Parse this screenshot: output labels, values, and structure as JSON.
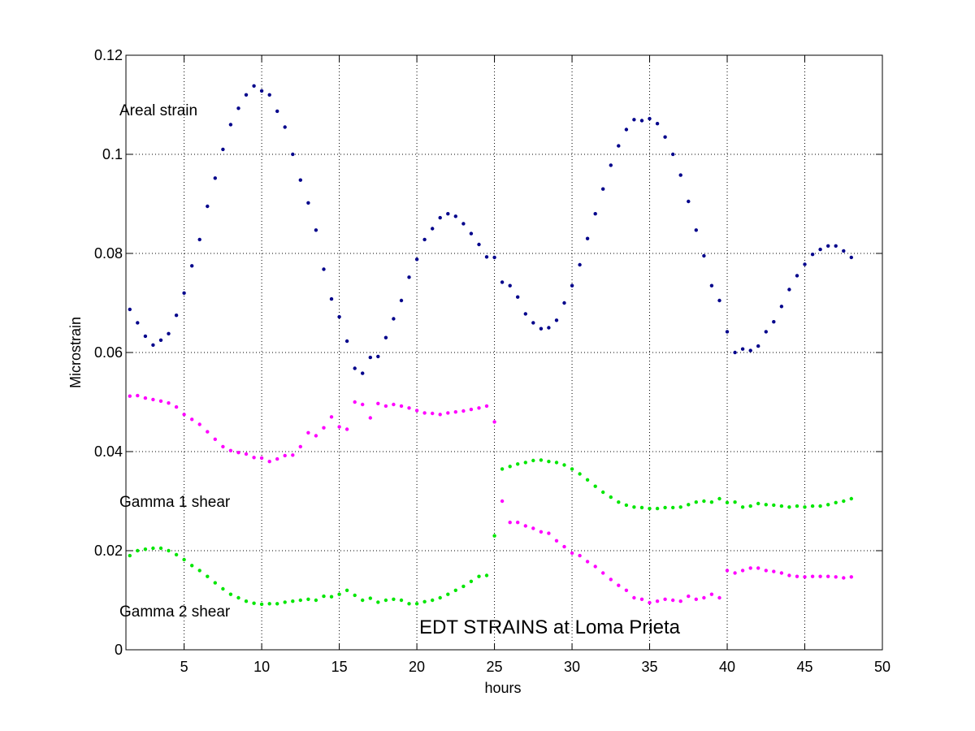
{
  "chart_data": {
    "type": "scatter",
    "xlabel": "hours",
    "ylabel": "Microstrain",
    "xlim": [
      1.25,
      50
    ],
    "ylim": [
      0,
      0.12
    ],
    "xticks": [
      "5",
      "10",
      "15",
      "20",
      "25",
      "30",
      "35",
      "40",
      "45",
      "50"
    ],
    "yticks": [
      "0",
      "0.02",
      "0.04",
      "0.06",
      "0.08",
      "0.1",
      "0.12"
    ],
    "grid": true,
    "annotations": {
      "areal": "Areal  strain",
      "gamma1": "Gamma 1  shear",
      "gamma2": "Gamma 2  shear",
      "title": "EDT STRAINS at Loma Prieta"
    },
    "colors": {
      "areal": "#00008b",
      "magenta": "#ff00ff",
      "green": "#00e600"
    },
    "series": [
      {
        "key": "areal",
        "color": "#00008b",
        "x": [
          1.5,
          2,
          2.5,
          3,
          3.5,
          4,
          4.5,
          5,
          5.5,
          6,
          6.5,
          7,
          7.5,
          8,
          8.5,
          9,
          9.5,
          10,
          10.5,
          11,
          11.5,
          12,
          12.5,
          13,
          13.5,
          14,
          14.5,
          15,
          15.5,
          16,
          16.5,
          17,
          17.5,
          18,
          18.5,
          19,
          19.5,
          20,
          20.5,
          21,
          21.5,
          22,
          22.5,
          23,
          23.5,
          24,
          24.5,
          25,
          25.5,
          26,
          26.5,
          27,
          27.5,
          28,
          28.5,
          29,
          29.5,
          30,
          30.5,
          31,
          31.5,
          32,
          32.5,
          33,
          33.5,
          34,
          34.5,
          35,
          35.5,
          36,
          36.5,
          37,
          37.5,
          38,
          38.5,
          39,
          39.5,
          40,
          40.5,
          41,
          41.5,
          42,
          42.5,
          43,
          43.5,
          44,
          44.5,
          45,
          45.5,
          46,
          46.5,
          47,
          47.5,
          48
        ],
        "y": [
          0.0687,
          0.066,
          0.0633,
          0.0615,
          0.0625,
          0.0638,
          0.0675,
          0.072,
          0.0775,
          0.0828,
          0.0895,
          0.0952,
          0.101,
          0.106,
          0.1093,
          0.112,
          0.1138,
          0.1128,
          0.112,
          0.1087,
          0.1055,
          0.1,
          0.0948,
          0.0902,
          0.0847,
          0.0768,
          0.0708,
          0.0672,
          0.0623,
          0.0568,
          0.0558,
          0.059,
          0.0592,
          0.063,
          0.0668,
          0.0705,
          0.0752,
          0.0788,
          0.0828,
          0.085,
          0.0872,
          0.088,
          0.0875,
          0.086,
          0.084,
          0.0818,
          0.0793,
          0.0792,
          0.0742,
          0.0735,
          0.0712,
          0.0678,
          0.066,
          0.0648,
          0.065,
          0.0665,
          0.07,
          0.0735,
          0.0777,
          0.083,
          0.088,
          0.093,
          0.0978,
          0.1017,
          0.105,
          0.107,
          0.1068,
          0.1072,
          0.1062,
          0.1035,
          0.1,
          0.0958,
          0.0905,
          0.0847,
          0.0795,
          0.0735,
          0.0705,
          0.0642,
          0.06,
          0.0607,
          0.0604,
          0.0613,
          0.0642,
          0.0662,
          0.0693,
          0.0727,
          0.0755,
          0.0778,
          0.0798,
          0.0808,
          0.0815,
          0.0815,
          0.0805,
          0.0792
        ]
      },
      {
        "key": "magenta_a",
        "color": "#ff00ff",
        "x": [
          1.5,
          2,
          2.5,
          3,
          3.5,
          4,
          4.5,
          5,
          5.5,
          6,
          6.5,
          7,
          7.5,
          8,
          8.5,
          9,
          9.5,
          10,
          10.5,
          11,
          11.5,
          12,
          12.5,
          13,
          13.5,
          14,
          14.5,
          15,
          15.5,
          16,
          16.5,
          17,
          17.5,
          18,
          18.5,
          19,
          19.5,
          20,
          20.5,
          21,
          21.5,
          22,
          22.5,
          23,
          23.5,
          24,
          24.5,
          25
        ],
        "y": [
          0.0512,
          0.0513,
          0.0508,
          0.0505,
          0.0502,
          0.0498,
          0.049,
          0.0475,
          0.0465,
          0.0455,
          0.044,
          0.0425,
          0.041,
          0.0402,
          0.0398,
          0.0395,
          0.0388,
          0.0387,
          0.038,
          0.0385,
          0.0392,
          0.0393,
          0.041,
          0.0438,
          0.0432,
          0.0448,
          0.047,
          0.045,
          0.0445,
          0.05,
          0.0495,
          0.0468,
          0.0497,
          0.0492,
          0.0495,
          0.0492,
          0.0488,
          0.0483,
          0.0478,
          0.0477,
          0.0475,
          0.0478,
          0.048,
          0.0482,
          0.0485,
          0.0488,
          0.0492,
          0.046
        ]
      },
      {
        "key": "magenta_b",
        "color": "#ff00ff",
        "x": [
          25.5,
          26,
          26.5,
          27,
          27.5,
          28,
          28.5,
          29,
          29.5,
          30,
          30.5,
          31,
          31.5,
          32,
          32.5,
          33,
          33.5,
          34,
          34.5,
          35,
          35.5,
          36,
          36.5,
          37,
          37.5,
          38,
          38.5,
          39,
          39.5,
          40,
          40.5,
          41,
          41.5,
          42,
          42.5,
          43,
          43.5,
          44,
          44.5,
          45,
          45.5,
          46,
          46.5,
          47,
          47.5,
          48
        ],
        "y": [
          0.03,
          0.0257,
          0.0257,
          0.025,
          0.0245,
          0.0238,
          0.0235,
          0.022,
          0.0208,
          0.0195,
          0.019,
          0.0178,
          0.0168,
          0.0155,
          0.0142,
          0.013,
          0.012,
          0.0105,
          0.0102,
          0.0095,
          0.0098,
          0.0102,
          0.01,
          0.0098,
          0.0108,
          0.0102,
          0.0105,
          0.0112,
          0.0105,
          0.016,
          0.0155,
          0.016,
          0.0165,
          0.0165,
          0.016,
          0.0158,
          0.0155,
          0.015,
          0.0148,
          0.0147,
          0.0148,
          0.0148,
          0.0148,
          0.0147,
          0.0145,
          0.0147
        ]
      },
      {
        "key": "green_a",
        "color": "#00e600",
        "x": [
          1.5,
          2,
          2.5,
          3,
          3.5,
          4,
          4.5,
          5,
          5.5,
          6,
          6.5,
          7,
          7.5,
          8,
          8.5,
          9,
          9.5,
          10,
          10.5,
          11,
          11.5,
          12,
          12.5,
          13,
          13.5,
          14,
          14.5,
          15,
          15.5,
          16,
          16.5,
          17,
          17.5,
          18,
          18.5,
          19,
          19.5,
          20,
          20.5,
          21,
          21.5,
          22,
          22.5,
          23,
          23.5,
          24,
          24.5,
          25
        ],
        "y": [
          0.019,
          0.02,
          0.0203,
          0.0205,
          0.0205,
          0.02,
          0.0192,
          0.0182,
          0.017,
          0.016,
          0.0148,
          0.0135,
          0.0123,
          0.0112,
          0.0105,
          0.0098,
          0.0094,
          0.0092,
          0.0093,
          0.0093,
          0.0096,
          0.0098,
          0.01,
          0.0102,
          0.01,
          0.0108,
          0.0107,
          0.0112,
          0.012,
          0.011,
          0.01,
          0.0104,
          0.0096,
          0.01,
          0.0102,
          0.01,
          0.0093,
          0.0093,
          0.0097,
          0.01,
          0.0105,
          0.0112,
          0.012,
          0.0128,
          0.0138,
          0.0148,
          0.015,
          0.023
        ]
      },
      {
        "key": "green_b",
        "color": "#00e600",
        "x": [
          25.5,
          26,
          26.5,
          27,
          27.5,
          28,
          28.5,
          29,
          29.5,
          30,
          30.5,
          31,
          31.5,
          32,
          32.5,
          33,
          33.5,
          34,
          34.5,
          35,
          35.5,
          36,
          36.5,
          37,
          37.5,
          38,
          38.5,
          39,
          39.5,
          40,
          40.5,
          41,
          41.5,
          42,
          42.5,
          43,
          43.5,
          44,
          44.5,
          45,
          45.5,
          46,
          46.5,
          47,
          47.5,
          48
        ],
        "y": [
          0.0365,
          0.037,
          0.0375,
          0.0378,
          0.0382,
          0.0383,
          0.038,
          0.0378,
          0.0373,
          0.0365,
          0.0355,
          0.0343,
          0.033,
          0.0318,
          0.0308,
          0.0298,
          0.0292,
          0.0288,
          0.0287,
          0.0285,
          0.0285,
          0.0287,
          0.0287,
          0.0288,
          0.0293,
          0.0298,
          0.03,
          0.0298,
          0.0305,
          0.0297,
          0.0298,
          0.0288,
          0.029,
          0.0295,
          0.0293,
          0.0292,
          0.029,
          0.0288,
          0.029,
          0.0288,
          0.029,
          0.029,
          0.0293,
          0.0297,
          0.03,
          0.0305
        ]
      }
    ]
  }
}
